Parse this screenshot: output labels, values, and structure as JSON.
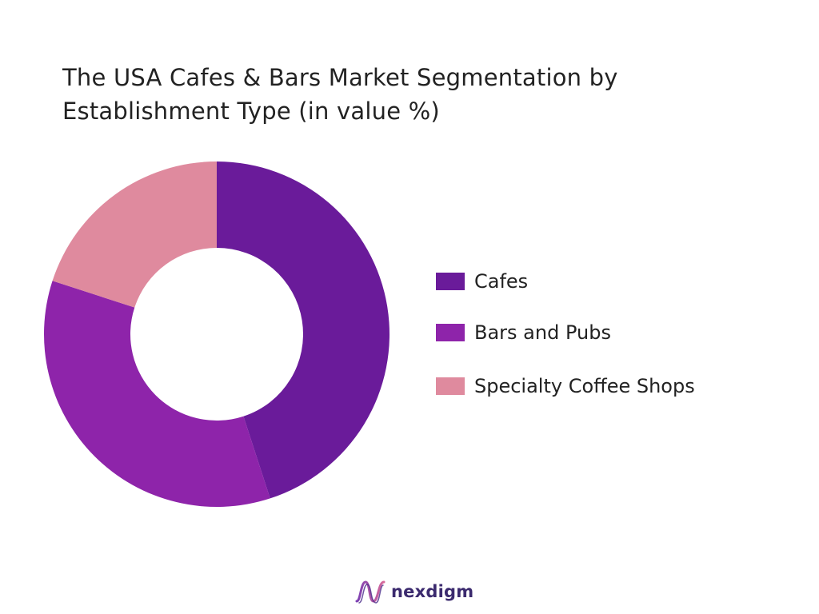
{
  "chart_data": {
    "type": "pie",
    "title": "The USA Cafes & Bars Market Segmentation by Establishment Type (in value %)",
    "categories": [
      "Cafes",
      "Bars and Pubs",
      "Specialty Coffee Shops"
    ],
    "values": [
      45,
      35,
      20
    ],
    "colors": [
      "#6a1b9a",
      "#8e24aa",
      "#df8a9e"
    ],
    "donut": true,
    "legend": "right"
  },
  "brand": {
    "name": "nexdigm",
    "logo_icon": "wave-logo-icon"
  }
}
